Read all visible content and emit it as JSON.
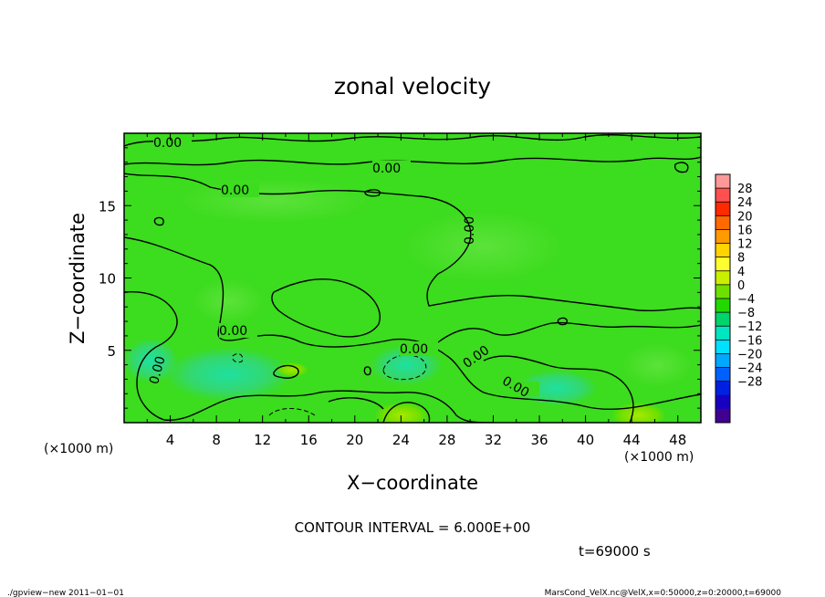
{
  "chart_data": {
    "type": "heatmap",
    "title": "zonal velocity",
    "xlabel": "X−coordinate",
    "ylabel": "Z−coordinate",
    "x_unit": "(×1000 m)",
    "y_unit": "(×1000 m)",
    "xlim": [
      0,
      50
    ],
    "ylim": [
      0,
      20
    ],
    "x_ticks": [
      "4",
      "8",
      "12",
      "16",
      "20",
      "24",
      "28",
      "32",
      "36",
      "40",
      "44",
      "48"
    ],
    "x_tick_values": [
      4,
      8,
      12,
      16,
      20,
      24,
      28,
      32,
      36,
      40,
      44,
      48
    ],
    "y_ticks": [
      "5",
      "10",
      "15"
    ],
    "y_tick_values": [
      5,
      10,
      15
    ],
    "colorbar": {
      "labels": [
        "28",
        "24",
        "20",
        "16",
        "12",
        "8",
        "4",
        "0",
        "−4",
        "−8",
        "−12",
        "−16",
        "−20",
        "−24",
        "−28"
      ],
      "colors": [
        "#ff9999",
        "#ff5050",
        "#ff2a00",
        "#ff6a00",
        "#ff9a00",
        "#ffd400",
        "#ffff30",
        "#c8f000",
        "#6ee000",
        "#22d800",
        "#00d46a",
        "#00e6c0",
        "#00e0ff",
        "#00a8ff",
        "#0060ff",
        "#0020e0",
        "#1800c0",
        "#400090"
      ]
    },
    "contour_labels": [
      "0.00",
      "0.00",
      "0.00",
      "0.00",
      "0.00",
      "0.00",
      "0.00",
      "0.00",
      "0.00"
    ],
    "contour_interval_text": "CONTOUR INTERVAL = 6.000E+00",
    "time_text": "t=69000 s",
    "footer_left": "./gpview−new   2011−01−01",
    "footer_right": "MarsCond_VelX.nc@VelX,x=0:50000,z=0:20000,t=69000"
  }
}
